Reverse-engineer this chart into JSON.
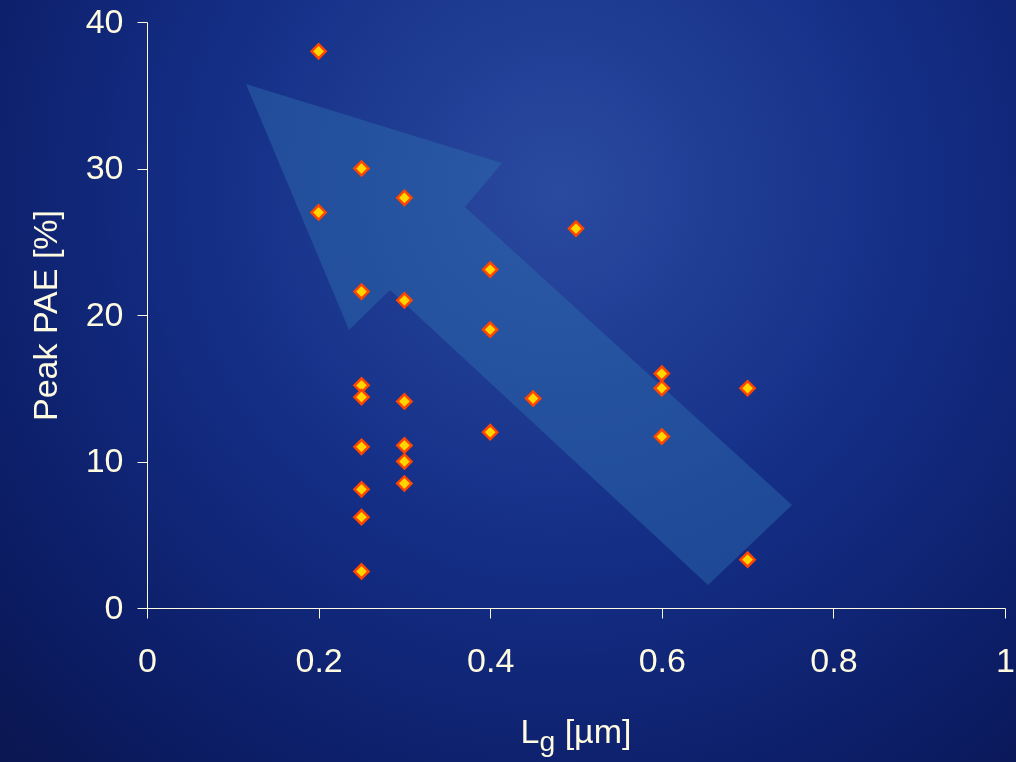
{
  "chart_data": {
    "type": "scatter",
    "xlabel": "L$_{g}$ [µm]",
    "ylabel": "Peak PAE [%]",
    "xlim": [
      0,
      1
    ],
    "ylim": [
      0,
      40
    ],
    "xticks": [
      0,
      0.2,
      0.4,
      0.6,
      0.8,
      1
    ],
    "yticks": [
      0,
      10,
      20,
      30,
      40
    ],
    "grid": false,
    "marker": "diamond",
    "series": [
      {
        "color": "#ffd700",
        "x": [
          0.2,
          0.2,
          0.25,
          0.25,
          0.25,
          0.25,
          0.25,
          0.25,
          0.25,
          0.25,
          0.3,
          0.3,
          0.3,
          0.3,
          0.3,
          0.3,
          0.4,
          0.4,
          0.4,
          0.45,
          0.5,
          0.6,
          0.6,
          0.6,
          0.7,
          0.7
        ],
        "values": [
          38,
          27,
          30,
          21.6,
          15.2,
          14.4,
          11,
          8.1,
          6.2,
          2.5,
          28,
          21,
          14.1,
          11.1,
          10,
          8.5,
          23.1,
          19,
          12,
          14.3,
          25.9,
          16,
          15,
          11.7,
          15,
          3.3
        ]
      }
    ]
  }
}
